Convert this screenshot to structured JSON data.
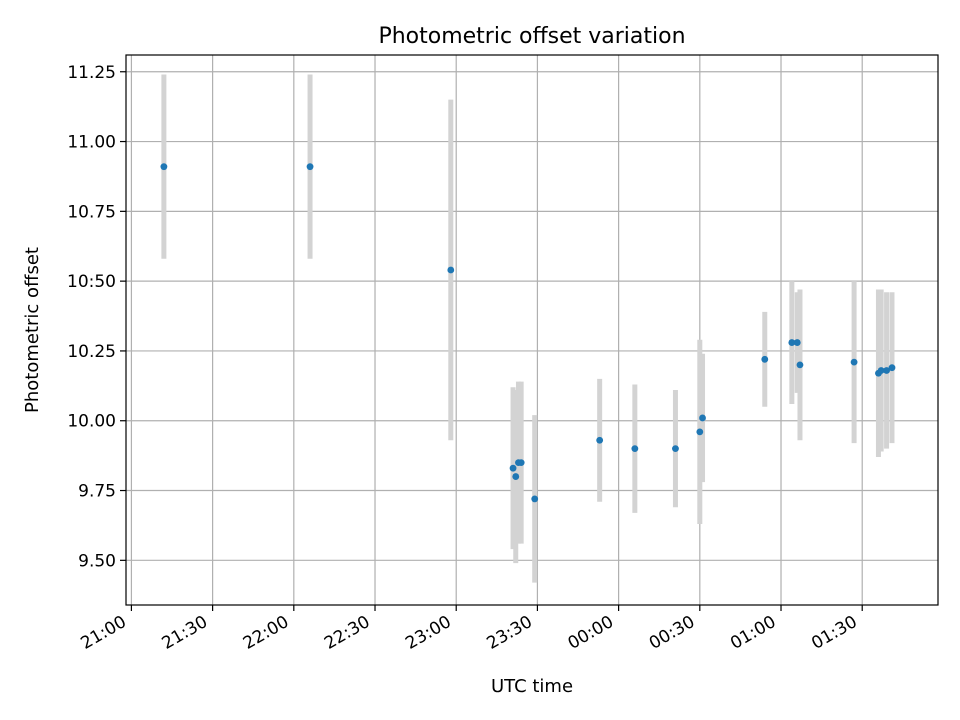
{
  "chart_data": {
    "type": "scatter",
    "title": "Photometric offset variation",
    "xlabel": "UTC time",
    "ylabel": "Photometric offset",
    "grid": true,
    "legend": "none",
    "colors": {
      "point": "#1f77b4",
      "errorbar": "#d3d3d3",
      "grid": "#b0b0b0"
    },
    "xlim": [
      "21:00",
      "01:58"
    ],
    "ylim": [
      9.34,
      11.31
    ],
    "x_ticks": [
      "21:00",
      "21:30",
      "22:00",
      "22:30",
      "23:00",
      "23:30",
      "00:00",
      "00:30",
      "01:00",
      "01:30"
    ],
    "y_ticks": [
      "9.50",
      "9.75",
      "10.00",
      "10.25",
      "10:50",
      "10.75",
      "11.00",
      "11.25"
    ],
    "points": [
      {
        "x": "21:12",
        "y": 10.91,
        "err": 0.33
      },
      {
        "x": "22:06",
        "y": 10.91,
        "err": 0.33
      },
      {
        "x": "22:58",
        "y": 10.54,
        "err": 0.61
      },
      {
        "x": "23:21",
        "y": 9.83,
        "err": 0.29
      },
      {
        "x": "23:22",
        "y": 9.8,
        "err": 0.31
      },
      {
        "x": "23:23",
        "y": 9.85,
        "err": 0.29
      },
      {
        "x": "23:24",
        "y": 9.85,
        "err": 0.29
      },
      {
        "x": "23:29",
        "y": 9.72,
        "err": 0.3
      },
      {
        "x": "23:53",
        "y": 9.93,
        "err": 0.22
      },
      {
        "x": "00:06",
        "y": 9.9,
        "err": 0.23
      },
      {
        "x": "00:21",
        "y": 9.9,
        "err": 0.21
      },
      {
        "x": "00:30",
        "y": 9.96,
        "err": 0.33
      },
      {
        "x": "00:31",
        "y": 10.01,
        "err": 0.23
      },
      {
        "x": "00:54",
        "y": 10.22,
        "err": 0.17
      },
      {
        "x": "01:04",
        "y": 10.28,
        "err": 0.22
      },
      {
        "x": "01:06",
        "y": 10.28,
        "err": 0.18
      },
      {
        "x": "01:07",
        "y": 10.2,
        "err": 0.27
      },
      {
        "x": "01:27",
        "y": 10.21,
        "err": 0.29
      },
      {
        "x": "01:36",
        "y": 10.17,
        "err": 0.3
      },
      {
        "x": "01:37",
        "y": 10.18,
        "err": 0.29
      },
      {
        "x": "01:39",
        "y": 10.18,
        "err": 0.28
      },
      {
        "x": "01:41",
        "y": 10.19,
        "err": 0.27
      }
    ]
  }
}
